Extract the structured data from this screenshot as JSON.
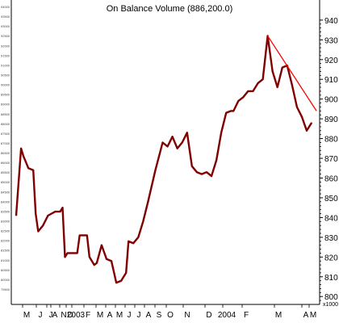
{
  "chart_data": {
    "type": "line",
    "title": "On Balance Volume (886,200.0)",
    "y_axis_right": {
      "min": 796,
      "max": 942,
      "ticks": [
        940,
        930,
        920,
        910,
        900,
        890,
        880,
        870,
        860,
        850,
        840,
        830,
        820,
        810,
        800
      ],
      "unit_label": "x1000"
    },
    "y_axis_left_ticks": [
      "94000",
      "93500",
      "93000",
      "92500",
      "92000",
      "91500",
      "91000",
      "90500",
      "90000",
      "89500",
      "89000",
      "88500",
      "88000",
      "87500",
      "87000",
      "86500",
      "86000",
      "85500",
      "85000",
      "84500",
      "84000",
      "83500",
      "83000",
      "82500",
      "82000",
      "81500",
      "81000",
      "80500",
      "80000",
      "79500"
    ],
    "x_labels": [
      "M",
      "J",
      "J",
      "A",
      "N",
      "D",
      "2003",
      "F",
      "M",
      "A",
      "M",
      "J",
      "J",
      "A",
      "S",
      "O",
      "N",
      "D",
      "2004",
      "F",
      "M",
      "A",
      "M"
    ],
    "series": [
      {
        "color": "#800000",
        "values": [
          841,
          875,
          871,
          865,
          864,
          842,
          833,
          836,
          841,
          843,
          843,
          845,
          820,
          822,
          822,
          822,
          831,
          831,
          820,
          816,
          817,
          826,
          819,
          818,
          807,
          808,
          812,
          828,
          827,
          830,
          838,
          848,
          864,
          878,
          876,
          881,
          875,
          878,
          883,
          866,
          863,
          862,
          863,
          861,
          869,
          883,
          893,
          894,
          894,
          899,
          901,
          904,
          904,
          908,
          910,
          932,
          914,
          906,
          916,
          917,
          907,
          896,
          891,
          884,
          888
        ],
        "dates": [
          "2002-04-22",
          "2002-05-06",
          "2002-05-13",
          "2002-05-27",
          "2002-06-10",
          "2002-06-17",
          "2002-06-24",
          "2002-07-08",
          "2002-07-22",
          "2002-08-12",
          "2002-08-26",
          "2002-09-02",
          "2002-09-09",
          "2002-09-16",
          "2002-09-30",
          "2002-10-14",
          "2002-10-21",
          "2002-11-11",
          "2002-11-18",
          "2002-12-02",
          "2002-12-09",
          "2002-12-23",
          "2003-01-06",
          "2003-01-20",
          "2003-02-03",
          "2003-02-17",
          "2003-03-03",
          "2003-03-10",
          "2003-03-24",
          "2003-04-07",
          "2003-04-21",
          "2003-05-05",
          "2003-05-26",
          "2003-06-16",
          "2003-06-30",
          "2003-07-14",
          "2003-07-28",
          "2003-08-11",
          "2003-08-25",
          "2003-09-08",
          "2003-09-22",
          "2003-10-06",
          "2003-10-20",
          "2003-11-03",
          "2003-11-17",
          "2003-12-01",
          "2003-12-15",
          "2003-12-29",
          "2004-01-05",
          "2004-01-19",
          "2004-02-02",
          "2004-02-16",
          "2004-03-01",
          "2004-03-15",
          "2004-03-29",
          "2004-04-12",
          "2004-04-26",
          "2004-05-10",
          "2004-05-24",
          "2004-06-07",
          "2004-06-21",
          "2004-07-05",
          "2004-07-19",
          "2004-08-02",
          "2004-08-16"
        ]
      }
    ],
    "trendline": {
      "color": "#ff0000",
      "from": {
        "date": "2004-04-12",
        "value": 932
      },
      "to": {
        "date": "2004-08-30",
        "value": 894
      }
    },
    "grid": false
  }
}
